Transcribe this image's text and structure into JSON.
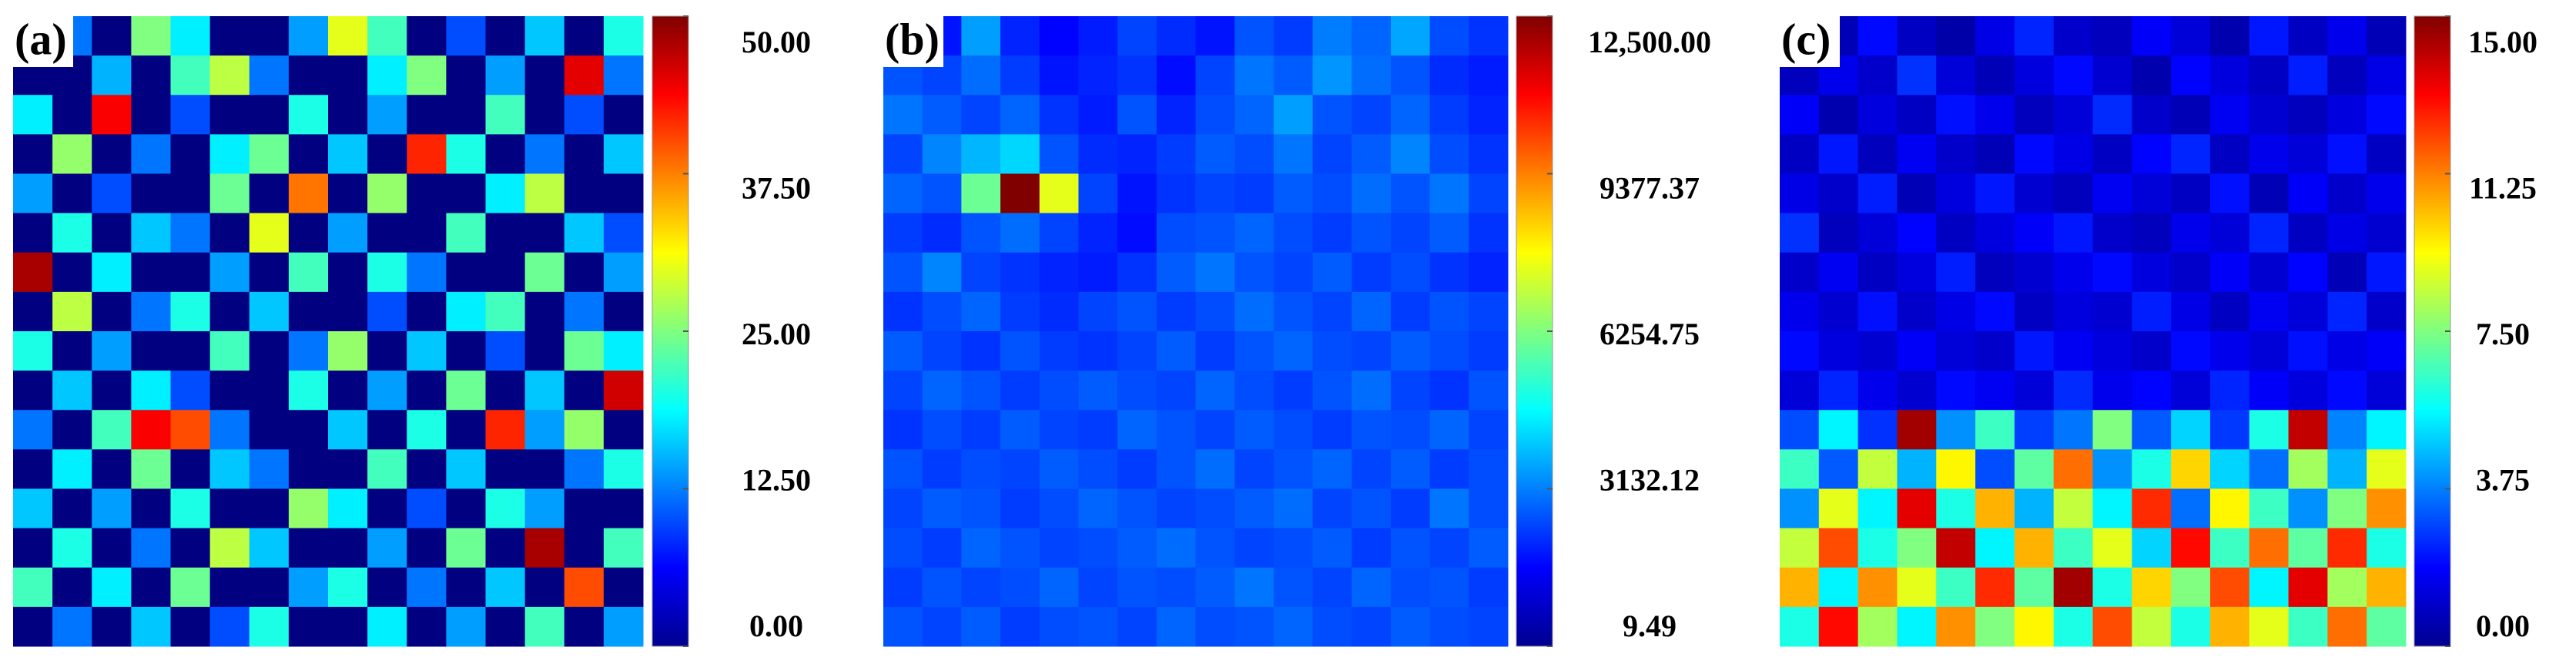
{
  "chart_data": [
    {
      "type": "heatmap",
      "label": "(a)",
      "colormap": "jet",
      "vlim": [
        0,
        50
      ],
      "ticks": [
        {
          "value": 0,
          "label": "0.00"
        },
        {
          "value": 12.5,
          "label": "12.50"
        },
        {
          "value": 25,
          "label": "25.00"
        },
        {
          "value": 37.5,
          "label": "37.50"
        },
        {
          "value": 50,
          "label": "50.00"
        }
      ],
      "values": [
        [
          0,
          12,
          0,
          25,
          18,
          0,
          0,
          14,
          30,
          22,
          0,
          10,
          0,
          16,
          0,
          20
        ],
        [
          0,
          0,
          15,
          0,
          22,
          28,
          12,
          0,
          0,
          18,
          25,
          0,
          14,
          0,
          45,
          12
        ],
        [
          18,
          0,
          44,
          0,
          10,
          0,
          0,
          20,
          0,
          14,
          0,
          0,
          22,
          0,
          10,
          0
        ],
        [
          0,
          26,
          0,
          12,
          0,
          18,
          24,
          0,
          16,
          0,
          42,
          20,
          0,
          12,
          0,
          16
        ],
        [
          14,
          0,
          10,
          0,
          0,
          24,
          0,
          38,
          0,
          26,
          0,
          0,
          18,
          28,
          0,
          0
        ],
        [
          0,
          20,
          0,
          16,
          12,
          0,
          30,
          0,
          14,
          0,
          0,
          22,
          0,
          0,
          16,
          10
        ],
        [
          48,
          0,
          18,
          0,
          0,
          14,
          0,
          22,
          0,
          20,
          12,
          0,
          0,
          24,
          0,
          14
        ],
        [
          0,
          28,
          0,
          12,
          20,
          0,
          16,
          0,
          0,
          10,
          0,
          18,
          22,
          0,
          12,
          0
        ],
        [
          20,
          0,
          14,
          0,
          0,
          22,
          0,
          12,
          26,
          0,
          16,
          0,
          10,
          0,
          24,
          18
        ],
        [
          0,
          16,
          0,
          18,
          10,
          0,
          0,
          20,
          0,
          14,
          0,
          24,
          0,
          16,
          0,
          46
        ],
        [
          12,
          0,
          22,
          44,
          40,
          12,
          0,
          0,
          16,
          0,
          20,
          0,
          42,
          14,
          26,
          0
        ],
        [
          0,
          18,
          0,
          24,
          0,
          16,
          12,
          0,
          0,
          22,
          0,
          16,
          0,
          0,
          12,
          20
        ],
        [
          16,
          0,
          14,
          0,
          20,
          0,
          0,
          26,
          18,
          0,
          10,
          0,
          20,
          14,
          0,
          0
        ],
        [
          0,
          20,
          0,
          12,
          0,
          28,
          16,
          0,
          0,
          14,
          0,
          24,
          0,
          48,
          0,
          22
        ],
        [
          22,
          0,
          18,
          0,
          24,
          0,
          0,
          14,
          20,
          0,
          12,
          0,
          16,
          0,
          40,
          0
        ],
        [
          0,
          12,
          0,
          16,
          0,
          10,
          20,
          0,
          0,
          18,
          0,
          14,
          0,
          22,
          0,
          14
        ]
      ]
    },
    {
      "type": "heatmap",
      "label": "(b)",
      "colormap": "jet",
      "vlim": [
        9.49,
        12500
      ],
      "ticks": [
        9.49,
        3132.12,
        6254.75,
        9377.37,
        {
          "value": 12500,
          "label": "12,500.00"
        }
      ],
      "values": [
        [
          2200,
          1800,
          3500,
          2000,
          1600,
          1900,
          2400,
          2100,
          1800,
          2600,
          2300,
          3100,
          2800,
          3600,
          2500,
          2200
        ],
        [
          2600,
          2400,
          2900,
          2300,
          1800,
          2000,
          2200,
          1700,
          2400,
          3000,
          2700,
          3400,
          2900,
          2600,
          2100,
          1900
        ],
        [
          3000,
          2700,
          2400,
          2800,
          2200,
          1900,
          2600,
          2000,
          2500,
          2800,
          3500,
          2600,
          2400,
          2800,
          2300,
          2000
        ],
        [
          2400,
          3200,
          3800,
          4200,
          2600,
          2100,
          2000,
          2300,
          2700,
          2500,
          3000,
          2400,
          2700,
          3200,
          2500,
          2200
        ],
        [
          2800,
          2600,
          6000,
          12500,
          7500,
          2400,
          1800,
          2200,
          2400,
          2300,
          2700,
          2500,
          2900,
          2600,
          3000,
          2400
        ],
        [
          2300,
          2100,
          2600,
          2900,
          2400,
          2000,
          1700,
          2500,
          2600,
          2800,
          2500,
          2300,
          2600,
          2400,
          2700,
          2200
        ],
        [
          2600,
          3200,
          2400,
          2200,
          2000,
          1900,
          2200,
          2700,
          3000,
          2600,
          2400,
          2700,
          2300,
          2500,
          2200,
          2000
        ],
        [
          2200,
          2500,
          2800,
          2300,
          2100,
          2400,
          2600,
          2300,
          2500,
          2900,
          2600,
          2400,
          2800,
          2300,
          2600,
          2400
        ],
        [
          2700,
          2400,
          2200,
          2600,
          2300,
          2200,
          2400,
          2700,
          2300,
          2600,
          2800,
          2500,
          2400,
          2700,
          2500,
          2300
        ],
        [
          2400,
          2800,
          2600,
          2300,
          2500,
          2700,
          2500,
          2400,
          2800,
          2500,
          2300,
          2600,
          2900,
          2400,
          2200,
          2600
        ],
        [
          2200,
          2500,
          2300,
          2700,
          2400,
          2300,
          2800,
          2600,
          2400,
          2700,
          2500,
          2300,
          2600,
          2500,
          2800,
          2400
        ],
        [
          2600,
          2300,
          2500,
          2400,
          2700,
          2500,
          2300,
          2600,
          2900,
          2400,
          2600,
          2800,
          2400,
          2700,
          2300,
          2500
        ],
        [
          2400,
          2700,
          2600,
          2300,
          2500,
          2800,
          2600,
          2400,
          2500,
          2700,
          2900,
          2400,
          2600,
          2300,
          3000,
          2500
        ],
        [
          2500,
          2300,
          2800,
          2600,
          2400,
          2500,
          2700,
          2900,
          2600,
          2400,
          2500,
          2700,
          2300,
          2600,
          2400,
          2700
        ],
        [
          2300,
          2600,
          2400,
          2500,
          2800,
          2400,
          2600,
          2500,
          2700,
          3000,
          2600,
          2400,
          2800,
          2500,
          2600,
          2300
        ],
        [
          2600,
          2400,
          2700,
          2300,
          2500,
          2600,
          2400,
          2800,
          2500,
          2600,
          2800,
          2500,
          2400,
          2700,
          2500,
          2400
        ]
      ]
    },
    {
      "type": "heatmap",
      "label": "(c)",
      "colormap": "jet",
      "vlim": [
        0,
        15
      ],
      "ticks": [
        {
          "value": 0,
          "label": "0.00"
        },
        3.75,
        {
          "value": 7.5,
          "label": "7.50"
        },
        11.25,
        {
          "value": 15,
          "label": "15.00"
        }
      ],
      "values": [
        [
          1.2,
          0.8,
          2.0,
          1.0,
          0.6,
          1.5,
          2.4,
          1.1,
          0.9,
          1.8,
          1.3,
          0.7,
          2.2,
          1.0,
          1.6,
          0.8
        ],
        [
          0.9,
          1.6,
          1.1,
          2.6,
          1.3,
          0.8,
          1.4,
          2.0,
          1.2,
          0.7,
          1.9,
          1.4,
          1.0,
          2.3,
          0.9,
          1.5
        ],
        [
          1.8,
          0.7,
          1.4,
          1.0,
          2.1,
          1.6,
          0.9,
          1.3,
          2.5,
          1.1,
          0.8,
          1.7,
          1.2,
          0.9,
          1.4,
          2.0
        ],
        [
          1.0,
          2.2,
          0.9,
          1.7,
          1.1,
          0.8,
          2.0,
          1.5,
          1.0,
          1.9,
          2.4,
          1.0,
          1.6,
          1.3,
          2.1,
          1.0
        ],
        [
          1.5,
          1.1,
          2.3,
          0.8,
          1.4,
          2.2,
          1.2,
          0.9,
          1.7,
          1.3,
          1.0,
          2.1,
          0.8,
          1.8,
          1.1,
          1.6
        ],
        [
          2.6,
          0.9,
          1.3,
          1.9,
          1.0,
          1.4,
          1.8,
          2.2,
          1.1,
          0.9,
          1.6,
          1.3,
          2.4,
          1.0,
          1.5,
          1.2
        ],
        [
          1.1,
          1.7,
          1.0,
          1.4,
          2.3,
          0.9,
          1.2,
          1.6,
          2.0,
          1.4,
          1.1,
          1.8,
          1.2,
          1.9,
          0.8,
          2.2
        ],
        [
          1.6,
          1.2,
          2.1,
          1.1,
          1.5,
          2.0,
          1.0,
          1.4,
          1.2,
          2.3,
          1.5,
          1.0,
          1.7,
          1.3,
          2.4,
          1.1
        ],
        [
          2.0,
          1.4,
          1.2,
          1.8,
          1.3,
          1.1,
          2.2,
          1.7,
          1.4,
          1.1,
          2.0,
          1.6,
          1.3,
          2.1,
          1.5,
          1.8
        ],
        [
          1.3,
          2.4,
          1.6,
          1.2,
          2.0,
          1.7,
          1.3,
          2.5,
          1.6,
          1.9,
          1.3,
          2.4,
          1.8,
          1.4,
          2.0,
          1.3
        ],
        [
          3.0,
          5.5,
          2.6,
          14.5,
          4.0,
          6.5,
          2.8,
          3.6,
          7.5,
          3.2,
          5.0,
          2.7,
          6.0,
          14.0,
          3.8,
          5.5
        ],
        [
          6.5,
          3.2,
          8.5,
          4.5,
          9.5,
          3.0,
          7.0,
          11.5,
          4.0,
          6.0,
          10.0,
          5.0,
          3.5,
          8.0,
          4.5,
          9.0
        ],
        [
          4.0,
          9.0,
          5.5,
          13.5,
          6.0,
          10.5,
          4.5,
          8.5,
          5.5,
          12.5,
          3.5,
          9.5,
          6.5,
          4.0,
          7.5,
          11.0
        ],
        [
          8.5,
          12.0,
          6.0,
          7.5,
          14.0,
          5.5,
          10.5,
          6.5,
          9.0,
          5.0,
          13.0,
          6.5,
          11.5,
          7.0,
          12.5,
          6.0
        ],
        [
          10.5,
          5.5,
          11.0,
          9.0,
          6.5,
          12.5,
          7.0,
          14.5,
          6.0,
          10.0,
          7.5,
          12.0,
          5.5,
          13.5,
          8.0,
          10.5
        ],
        [
          6.0,
          13.0,
          8.0,
          5.5,
          11.0,
          7.5,
          9.5,
          6.0,
          12.0,
          8.5,
          6.0,
          10.5,
          9.0,
          6.5,
          11.5,
          7.0
        ]
      ]
    }
  ]
}
